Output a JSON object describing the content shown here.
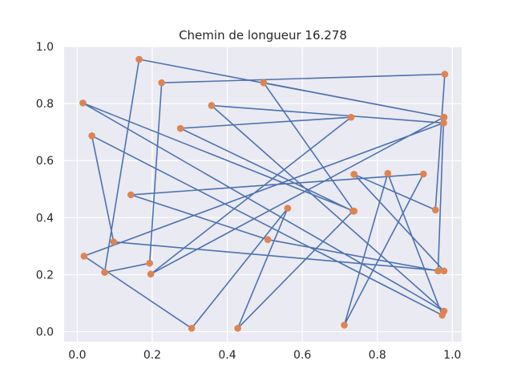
{
  "chart_data": {
    "type": "line",
    "title": "Chemin de longueur 16.278",
    "xlabel": "",
    "ylabel": "",
    "xlim": [
      -0.035,
      1.025
    ],
    "ylim": [
      -0.035,
      1.0
    ],
    "xticks": [
      0.0,
      0.2,
      0.4,
      0.6,
      0.8,
      1.0
    ],
    "xtick_labels": [
      "0.0",
      "0.2",
      "0.4",
      "0.6",
      "0.8",
      "1.0"
    ],
    "yticks": [
      0.0,
      0.2,
      0.4,
      0.6,
      0.8,
      1.0
    ],
    "ytick_labels": [
      "0.0",
      "0.2",
      "0.4",
      "0.6",
      "0.8",
      "1.0"
    ],
    "grid": true,
    "line_color": "#4c72b0",
    "point_color": "#dd8452",
    "background_color": "#eaeaf2",
    "series": [
      {
        "x": [
          0.165,
          0.978,
          0.497,
          0.738,
          0.015,
          0.978,
          0.358,
          0.977,
          0.018,
          0.305,
          0.561,
          0.428,
          0.735,
          0.275,
          0.73,
          0.196,
          0.977,
          0.962,
          0.508,
          0.143,
          0.923,
          0.712,
          0.828,
          0.973,
          0.039,
          0.097,
          0.978,
          0.738,
          0.955,
          0.98,
          0.225,
          0.193,
          0.073,
          0.165
        ],
        "y": [
          0.955,
          0.752,
          0.873,
          0.423,
          0.802,
          0.072,
          0.793,
          0.732,
          0.265,
          0.012,
          0.433,
          0.012,
          0.423,
          0.713,
          0.752,
          0.202,
          0.752,
          0.213,
          0.323,
          0.48,
          0.553,
          0.023,
          0.555,
          0.058,
          0.687,
          0.315,
          0.213,
          0.552,
          0.427,
          0.903,
          0.873,
          0.24,
          0.208,
          0.955
        ]
      }
    ]
  }
}
